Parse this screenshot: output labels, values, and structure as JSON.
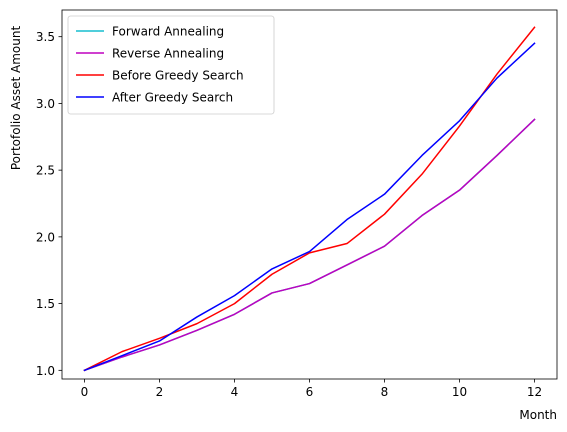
{
  "chart_data": {
    "type": "line",
    "xlabel": "Month",
    "ylabel": "Portofolio Asset Amount",
    "xlim": [
      -0.6,
      12.6
    ],
    "ylim": [
      0.935,
      3.7
    ],
    "xticks": [
      0,
      2,
      4,
      6,
      8,
      10,
      12
    ],
    "xtick_labels": [
      "0",
      "2",
      "4",
      "6",
      "8",
      "10",
      "12"
    ],
    "yticks": [
      1.0,
      1.5,
      2.0,
      2.5,
      3.0,
      3.5
    ],
    "ytick_labels": [
      "1.0",
      "1.5",
      "2.0",
      "2.5",
      "3.0",
      "3.5"
    ],
    "grid": false,
    "legend_position": "top-left",
    "x": [
      0,
      1,
      2,
      3,
      4,
      5,
      6,
      7,
      8,
      9,
      10,
      11,
      12
    ],
    "series": [
      {
        "name": "Forward Annealing",
        "color": "#17becf",
        "values": [
          1.0,
          1.1,
          1.19,
          1.3,
          1.42,
          1.58,
          1.65,
          1.79,
          1.93,
          2.16,
          2.35,
          2.61,
          2.88
        ]
      },
      {
        "name": "Reverse Annealing",
        "color": "#bf00bf",
        "values": [
          1.0,
          1.1,
          1.19,
          1.3,
          1.42,
          1.58,
          1.65,
          1.79,
          1.93,
          2.16,
          2.35,
          2.61,
          2.88
        ]
      },
      {
        "name": "Before Greedy Search",
        "color": "#ff0000",
        "values": [
          1.0,
          1.14,
          1.24,
          1.35,
          1.5,
          1.72,
          1.88,
          1.95,
          2.17,
          2.47,
          2.83,
          3.22,
          3.57
        ]
      },
      {
        "name": "After Greedy Search",
        "color": "#0000ff",
        "values": [
          1.0,
          1.11,
          1.22,
          1.4,
          1.56,
          1.76,
          1.89,
          2.13,
          2.32,
          2.61,
          2.87,
          3.19,
          3.45
        ]
      }
    ]
  }
}
